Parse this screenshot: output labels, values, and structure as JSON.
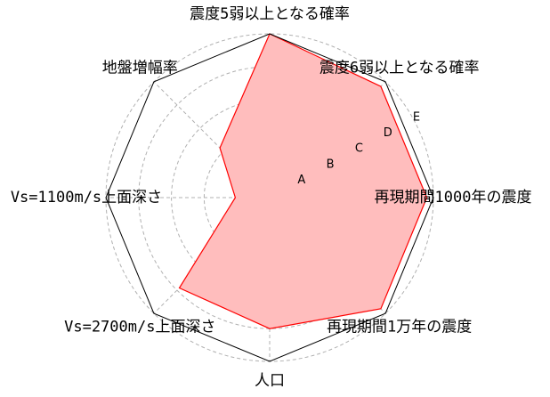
{
  "chart_data": {
    "type": "radar",
    "axes": [
      "震度5弱以上となる確率",
      "震度6弱以上となる確率",
      "再現期間1000年の震度",
      "再現期間1万年の震度",
      "人口",
      "Vs=2700m/s上面深さ",
      "Vs=1100m/s上面深さ",
      "地盤増幅率"
    ],
    "rings": [
      "A",
      "B",
      "C",
      "D",
      "E"
    ],
    "rmax": 5,
    "values": [
      5.0,
      4.8,
      4.8,
      4.8,
      4.0,
      3.9,
      1.05,
      2.15
    ],
    "grid": true,
    "fill_color": "#ffbdbd",
    "line_color": "#ff0000"
  }
}
